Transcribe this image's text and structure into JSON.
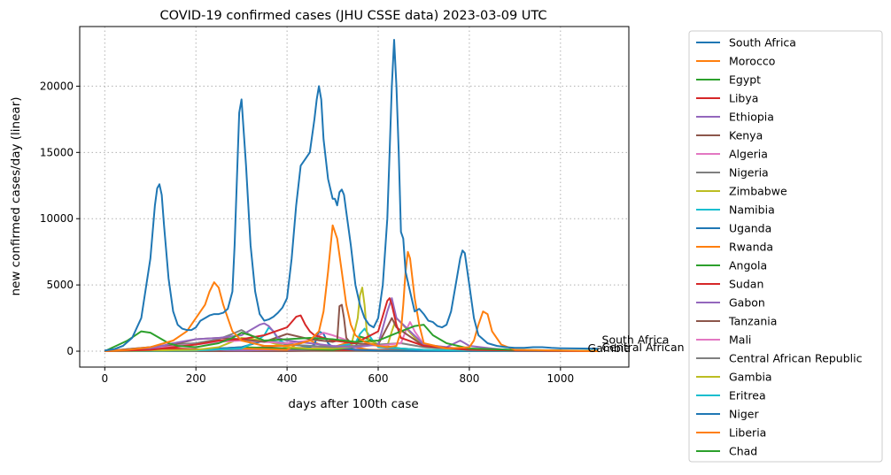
{
  "chart_data": {
    "type": "line",
    "title": "COVID-19 confirmed cases (JHU CSSE data) 2023-03-09 UTC",
    "xlabel": "days after 100th case",
    "ylabel": "new confirmed cases/day (linear)",
    "xlim": [
      -55,
      1150
    ],
    "ylim": [
      -1200,
      24500
    ],
    "xticks": [
      0,
      200,
      400,
      600,
      800,
      1000
    ],
    "yticks": [
      0,
      5000,
      10000,
      15000,
      20000
    ],
    "grid": true,
    "legend_position": "outside-right",
    "end_labels": [
      "South Africa",
      "Central African Republic",
      "Gambia"
    ],
    "series": [
      {
        "name": "South Africa",
        "color": "#1f77b4",
        "x": [
          0,
          20,
          40,
          60,
          80,
          100,
          110,
          115,
          120,
          125,
          130,
          140,
          150,
          160,
          170,
          180,
          190,
          200,
          210,
          220,
          230,
          240,
          250,
          260,
          270,
          280,
          285,
          290,
          295,
          300,
          310,
          320,
          330,
          340,
          350,
          360,
          370,
          380,
          390,
          400,
          410,
          420,
          430,
          440,
          450,
          460,
          465,
          470,
          475,
          480,
          490,
          500,
          505,
          510,
          515,
          520,
          525,
          530,
          540,
          550,
          560,
          570,
          580,
          590,
          600,
          610,
          620,
          625,
          630,
          635,
          640,
          645,
          650,
          655,
          660,
          670,
          680,
          690,
          700,
          710,
          720,
          730,
          740,
          750,
          760,
          770,
          780,
          785,
          790,
          800,
          810,
          820,
          840,
          860,
          880,
          900,
          920,
          940,
          960,
          980,
          1000,
          1050,
          1083
        ],
        "y": [
          50,
          150,
          400,
          1000,
          2500,
          7000,
          11000,
          12300,
          12600,
          11800,
          9500,
          5500,
          3000,
          2000,
          1700,
          1600,
          1600,
          1800,
          2300,
          2500,
          2700,
          2800,
          2800,
          2900,
          3200,
          4500,
          8000,
          13000,
          18000,
          19000,
          14000,
          8000,
          4500,
          2800,
          2300,
          2400,
          2600,
          2900,
          3300,
          4000,
          7000,
          11000,
          14000,
          14500,
          15000,
          17500,
          19000,
          20000,
          19000,
          16000,
          13000,
          11500,
          11500,
          11000,
          12000,
          12200,
          11800,
          10500,
          8000,
          5000,
          3500,
          2500,
          2000,
          1800,
          2500,
          5000,
          10000,
          15000,
          20000,
          23500,
          20000,
          15000,
          9000,
          8500,
          6000,
          4500,
          3000,
          3200,
          2800,
          2300,
          2200,
          1900,
          1800,
          2000,
          3000,
          5000,
          7000,
          7600,
          7400,
          5000,
          2500,
          1200,
          600,
          400,
          300,
          250,
          250,
          300,
          300,
          250,
          220,
          200,
          180
        ]
      },
      {
        "name": "Morocco",
        "color": "#ff7f0e",
        "x": [
          0,
          50,
          100,
          150,
          180,
          200,
          220,
          230,
          240,
          250,
          260,
          270,
          280,
          300,
          350,
          400,
          430,
          450,
          470,
          480,
          490,
          500,
          510,
          520,
          530,
          540,
          550,
          570,
          600,
          620,
          640,
          650,
          655,
          660,
          665,
          670,
          680,
          690,
          700,
          750,
          800,
          810,
          820,
          830,
          840,
          850,
          870,
          900,
          1000,
          1083
        ],
        "y": [
          0,
          100,
          300,
          800,
          1500,
          2500,
          3500,
          4500,
          5200,
          4800,
          3500,
          2500,
          1500,
          800,
          400,
          400,
          600,
          800,
          1500,
          3000,
          6000,
          9500,
          8500,
          6000,
          3500,
          2000,
          1200,
          700,
          400,
          300,
          400,
          1500,
          3500,
          6000,
          7500,
          7000,
          4000,
          2000,
          600,
          200,
          300,
          800,
          2000,
          3000,
          2800,
          1500,
          500,
          100,
          50,
          0
        ]
      },
      {
        "name": "Egypt",
        "color": "#2ca02c",
        "x": [
          0,
          50,
          80,
          100,
          120,
          140,
          160,
          200,
          250,
          280,
          300,
          320,
          350,
          400,
          450,
          500,
          550,
          600,
          650,
          680,
          700,
          720,
          750,
          800,
          900,
          1000,
          1083
        ],
        "y": [
          0,
          800,
          1500,
          1400,
          1000,
          600,
          400,
          300,
          600,
          1000,
          1400,
          1200,
          800,
          900,
          1000,
          900,
          700,
          800,
          1500,
          1900,
          2000,
          1200,
          600,
          200,
          100,
          50,
          30
        ]
      },
      {
        "name": "Libya",
        "color": "#d62728",
        "x": [
          0,
          100,
          150,
          200,
          250,
          300,
          350,
          400,
          410,
          420,
          430,
          440,
          450,
          460,
          500,
          550,
          600,
          620,
          625,
          630,
          640,
          650,
          700,
          800,
          1000,
          1083
        ],
        "y": [
          0,
          100,
          300,
          500,
          800,
          900,
          1200,
          1800,
          2200,
          2600,
          2700,
          2000,
          1500,
          1200,
          800,
          600,
          1500,
          3800,
          4000,
          3500,
          2000,
          1000,
          400,
          100,
          20,
          10
        ]
      },
      {
        "name": "Ethiopia",
        "color": "#9467bd",
        "x": [
          0,
          100,
          150,
          200,
          250,
          300,
          340,
          350,
          360,
          370,
          380,
          400,
          450,
          500,
          550,
          600,
          620,
          630,
          640,
          700,
          750,
          780,
          790,
          800,
          850,
          900,
          1000,
          1083
        ],
        "y": [
          0,
          200,
          600,
          900,
          1000,
          1200,
          2000,
          2100,
          1900,
          1500,
          1000,
          800,
          600,
          400,
          300,
          500,
          3000,
          4000,
          2500,
          500,
          300,
          800,
          600,
          400,
          200,
          50,
          20,
          10
        ]
      },
      {
        "name": "Kenya",
        "color": "#8c564b",
        "x": [
          0,
          50,
          100,
          150,
          200,
          250,
          300,
          350,
          400,
          450,
          500,
          510,
          515,
          520,
          525,
          530,
          540,
          600,
          630,
          640,
          700,
          800,
          1000,
          1083
        ],
        "y": [
          0,
          150,
          300,
          500,
          900,
          1000,
          900,
          700,
          1300,
          900,
          700,
          800,
          3400,
          3500,
          2500,
          1000,
          600,
          500,
          2500,
          1800,
          400,
          100,
          20,
          10
        ]
      },
      {
        "name": "Algeria",
        "color": "#e377c2",
        "x": [
          0,
          100,
          150,
          200,
          250,
          300,
          350,
          400,
          450,
          480,
          500,
          550,
          600,
          650,
          660,
          670,
          680,
          690,
          700,
          800,
          1000,
          1083
        ],
        "y": [
          0,
          200,
          400,
          500,
          700,
          800,
          700,
          600,
          800,
          1400,
          1200,
          600,
          400,
          600,
          1500,
          2200,
          1500,
          1000,
          500,
          100,
          20,
          10
        ]
      },
      {
        "name": "Nigeria",
        "color": "#7f7f7f",
        "x": [
          0,
          100,
          150,
          200,
          250,
          280,
          300,
          320,
          350,
          400,
          450,
          500,
          550,
          600,
          650,
          700,
          800,
          1000,
          1083
        ],
        "y": [
          0,
          300,
          500,
          600,
          900,
          1300,
          1600,
          1200,
          800,
          500,
          400,
          300,
          400,
          500,
          600,
          300,
          100,
          50,
          30
        ]
      },
      {
        "name": "Zimbabwe",
        "color": "#bcbd22",
        "x": [
          0,
          100,
          200,
          250,
          300,
          350,
          400,
          450,
          500,
          540,
          555,
          560,
          565,
          570,
          575,
          580,
          600,
          620,
          630,
          640,
          700,
          800,
          1000,
          1083
        ],
        "y": [
          0,
          50,
          100,
          300,
          1000,
          800,
          300,
          200,
          200,
          300,
          2500,
          4200,
          4800,
          3500,
          1500,
          800,
          500,
          400,
          1500,
          2500,
          300,
          100,
          20,
          10
        ]
      },
      {
        "name": "Namibia",
        "color": "#17becf",
        "x": [
          0,
          200,
          300,
          330,
          350,
          360,
          370,
          380,
          400,
          450,
          500,
          550,
          560,
          570,
          580,
          590,
          600,
          650,
          700,
          800,
          1000,
          1083
        ],
        "y": [
          0,
          50,
          200,
          700,
          1200,
          1800,
          1500,
          900,
          500,
          400,
          300,
          600,
          1300,
          1700,
          1200,
          700,
          300,
          200,
          100,
          50,
          10,
          5
        ]
      },
      {
        "name": "Uganda",
        "color": "#1f77b4",
        "x": [
          0,
          100,
          200,
          300,
          350,
          400,
          450,
          460,
          470,
          480,
          490,
          500,
          550,
          600,
          700,
          800,
          1000,
          1083
        ],
        "y": [
          0,
          10,
          100,
          300,
          800,
          600,
          300,
          500,
          1500,
          1300,
          600,
          300,
          100,
          50,
          20,
          10,
          5,
          2
        ]
      },
      {
        "name": "Rwanda",
        "color": "#ff7f0e",
        "x": [
          0,
          100,
          200,
          300,
          400,
          420,
          450,
          480,
          500,
          530,
          550,
          580,
          600,
          700,
          800,
          1000,
          1083
        ],
        "y": [
          0,
          10,
          50,
          200,
          100,
          500,
          800,
          400,
          300,
          600,
          300,
          100,
          80,
          30,
          10,
          5,
          2
        ]
      },
      {
        "name": "Angola",
        "color": "#2ca02c",
        "x": [
          0,
          100,
          200,
          250,
          300,
          350,
          400,
          450,
          500,
          550,
          560,
          580,
          600,
          630,
          650,
          700,
          800,
          1000,
          1083
        ],
        "y": [
          0,
          20,
          100,
          200,
          300,
          250,
          200,
          150,
          100,
          300,
          1100,
          900,
          500,
          300,
          200,
          100,
          30,
          10,
          5
        ]
      },
      {
        "name": "Sudan",
        "color": "#d62728",
        "x": [
          0,
          100,
          150,
          200,
          250,
          300,
          350,
          400,
          450,
          500,
          550,
          600,
          700,
          800,
          1000,
          1083
        ],
        "y": [
          0,
          100,
          200,
          150,
          100,
          200,
          300,
          200,
          150,
          100,
          80,
          60,
          30,
          10,
          5,
          2
        ]
      },
      {
        "name": "Gabon",
        "color": "#9467bd",
        "x": [
          0,
          100,
          150,
          200,
          300,
          400,
          500,
          550,
          600,
          700,
          800,
          1000,
          1083
        ],
        "y": [
          0,
          50,
          200,
          100,
          50,
          100,
          150,
          80,
          50,
          20,
          10,
          5,
          2
        ]
      },
      {
        "name": "Tanzania",
        "color": "#8c564b",
        "x": [
          0,
          100,
          200,
          300,
          400,
          500,
          600,
          700,
          800,
          1000,
          1083
        ],
        "y": [
          0,
          10,
          5,
          5,
          10,
          50,
          100,
          80,
          30,
          10,
          5
        ]
      },
      {
        "name": "Mali",
        "color": "#e377c2",
        "x": [
          0,
          100,
          200,
          300,
          400,
          450,
          500,
          550,
          600,
          650,
          700,
          800,
          1000,
          1083
        ],
        "y": [
          0,
          20,
          50,
          100,
          200,
          300,
          250,
          150,
          100,
          200,
          100,
          30,
          10,
          5
        ]
      },
      {
        "name": "Central African Republic",
        "color": "#7f7f7f",
        "x": [
          0,
          100,
          200,
          300,
          400,
          500,
          600,
          700,
          800,
          1000,
          1083
        ],
        "y": [
          0,
          30,
          20,
          10,
          20,
          30,
          20,
          10,
          5,
          2,
          1
        ]
      },
      {
        "name": "Gambia",
        "color": "#bcbd22",
        "x": [
          0,
          100,
          150,
          200,
          300,
          400,
          500,
          600,
          700,
          800,
          1000,
          1083
        ],
        "y": [
          0,
          30,
          100,
          50,
          20,
          30,
          60,
          40,
          20,
          10,
          5,
          2
        ]
      },
      {
        "name": "Eritrea",
        "color": "#17becf",
        "x": [
          0,
          100,
          200,
          300,
          400,
          500,
          600,
          700,
          800,
          1000,
          1083
        ],
        "y": [
          0,
          10,
          20,
          50,
          60,
          50,
          30,
          20,
          10,
          5,
          2
        ]
      },
      {
        "name": "Niger",
        "color": "#1f77b4",
        "x": [
          0,
          100,
          200,
          300,
          400,
          500,
          600,
          700,
          800,
          1000,
          1083
        ],
        "y": [
          0,
          20,
          30,
          30,
          50,
          80,
          60,
          40,
          20,
          10,
          5
        ]
      },
      {
        "name": "Liberia",
        "color": "#ff7f0e",
        "x": [
          0,
          100,
          200,
          300,
          400,
          500,
          600,
          700,
          800,
          1000,
          1083
        ],
        "y": [
          0,
          20,
          10,
          10,
          40,
          30,
          20,
          10,
          5,
          2,
          1
        ]
      },
      {
        "name": "Chad",
        "color": "#2ca02c",
        "x": [
          0,
          100,
          200,
          300,
          400,
          500,
          600,
          700,
          800,
          1000,
          1083
        ],
        "y": [
          0,
          30,
          20,
          20,
          40,
          30,
          20,
          10,
          5,
          2,
          1
        ]
      }
    ]
  }
}
